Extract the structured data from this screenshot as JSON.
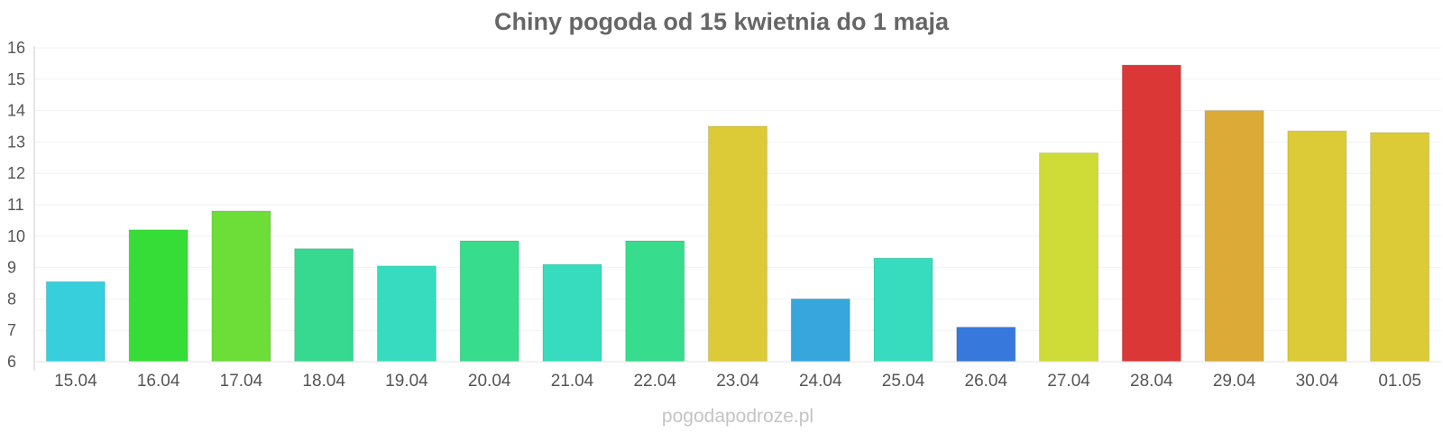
{
  "chart_data": {
    "type": "bar",
    "title": "Chiny pogoda od 15 kwietnia do 1 maja",
    "xlabel": "",
    "ylabel": "",
    "ylim": [
      6,
      16
    ],
    "yticks": [
      "6",
      "7",
      "8",
      "9",
      "10",
      "11",
      "12",
      "13",
      "14",
      "15",
      "16"
    ],
    "categories": [
      "15.04",
      "16.04",
      "17.04",
      "18.04",
      "19.04",
      "20.04",
      "21.04",
      "22.04",
      "23.04",
      "24.04",
      "25.04",
      "26.04",
      "27.04",
      "28.04",
      "29.04",
      "30.04",
      "01.05"
    ],
    "values": [
      8.55,
      10.2,
      10.8,
      9.6,
      9.05,
      9.85,
      9.1,
      9.85,
      13.5,
      8.0,
      9.3,
      7.1,
      12.65,
      15.45,
      14.0,
      13.35,
      13.3
    ],
    "colors": [
      "#37cfdc",
      "#37dd37",
      "#6ddd37",
      "#37d88f",
      "#37dcbf",
      "#37dc8c",
      "#37dcbf",
      "#37dc8c",
      "#dcca37",
      "#37a6dc",
      "#37dcbf",
      "#3778dc",
      "#cfdc37",
      "#dc3737",
      "#dcaa37",
      "#dccb37",
      "#dccb37"
    ],
    "grid": true,
    "legend": "none"
  },
  "watermark": "pogodapodroze.pl"
}
